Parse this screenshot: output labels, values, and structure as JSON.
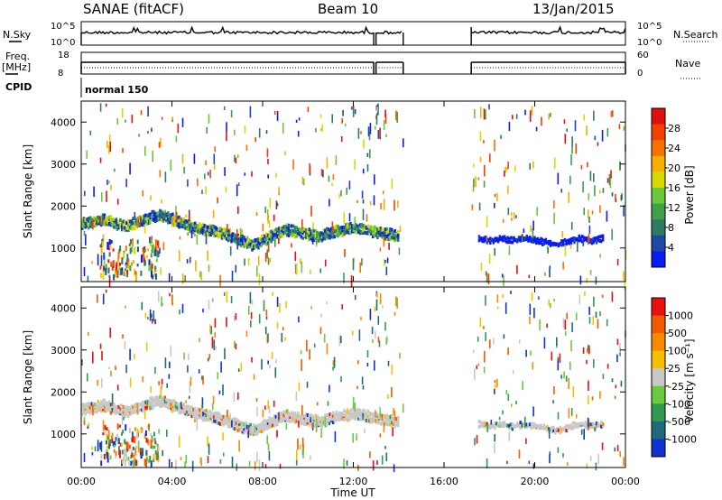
{
  "header": {
    "station": "SANAE (fitACF)",
    "beam": "Beam 10",
    "date": "13/Jan/2015"
  },
  "side_labels": {
    "nsky": "N.Sky",
    "nsearch": "N.Search",
    "freq": "Freq.",
    "freq_unit": "[MHz]",
    "nave": "Nave",
    "cpid": "CPID"
  },
  "noise_panel": {
    "left_ticks": [
      "10^5",
      "10^0"
    ],
    "right_ticks": [
      "10^5",
      "10^0"
    ]
  },
  "freq_panel": {
    "left_ticks": [
      "18",
      "8"
    ],
    "right_ticks": [
      "60",
      "0"
    ]
  },
  "cpid_panel": {
    "mode": "normal 150"
  },
  "x_axis": {
    "label": "Time UT",
    "ticks": [
      "00:00",
      "04:00",
      "08:00",
      "12:00",
      "16:00",
      "20:00",
      "00:00"
    ]
  },
  "y_axis": {
    "label": "Slant Range [km]",
    "ticks": [
      "1000",
      "2000",
      "3000",
      "4000"
    ],
    "range_km": [
      200,
      4500
    ]
  },
  "power_scale": {
    "label": "Power [dB]",
    "ticks": [
      "4",
      "8",
      "12",
      "16",
      "20",
      "24",
      "28"
    ],
    "colors": [
      "#0a1cf0",
      "#1c48a8",
      "#2f7a64",
      "#3ea04a",
      "#6cc83a",
      "#d8d800",
      "#f6b000",
      "#f77000",
      "#f24000",
      "#e01010"
    ]
  },
  "velocity_scale": {
    "label": "Velocity [m s⁻¹]",
    "ticks": [
      "1000",
      "500",
      "100",
      "25",
      "-25",
      "-100",
      "-500",
      "-1000"
    ],
    "colors": [
      "#1030d0",
      "#1f6a7a",
      "#2f9a50",
      "#6acb40",
      "#c8c8c8",
      "#f4c000",
      "#f78a00",
      "#f25a00",
      "#ea1010"
    ]
  },
  "chart_data": {
    "type": "heatmap",
    "x_range_hours": [
      0,
      24
    ],
    "data_gaps_hours": [
      [
        14.2,
        17.2
      ]
    ],
    "cpid_change_hours": [
      12.9
    ],
    "echo_band": {
      "x_hours": [
        0,
        0.5,
        1,
        1.5,
        2,
        2.5,
        3,
        3.5,
        4,
        4.5,
        5,
        5.5,
        6,
        6.5,
        7,
        7.5,
        8,
        8.5,
        9,
        9.5,
        10,
        10.5,
        11,
        11.5,
        12,
        12.5,
        13,
        13.5,
        14,
        17.5,
        18,
        18.5,
        19,
        19.5,
        20,
        20.5,
        21,
        21.5,
        22,
        22.5,
        23
      ],
      "range_km": [
        1650,
        1700,
        1750,
        1650,
        1600,
        1700,
        1800,
        1850,
        1750,
        1650,
        1550,
        1500,
        1450,
        1350,
        1250,
        1150,
        1250,
        1400,
        1500,
        1450,
        1400,
        1350,
        1450,
        1500,
        1550,
        1500,
        1450,
        1400,
        1350,
        1300,
        1250,
        1300,
        1250,
        1300,
        1250,
        1200,
        1150,
        1250,
        1300,
        1250,
        1300
      ]
    }
  }
}
